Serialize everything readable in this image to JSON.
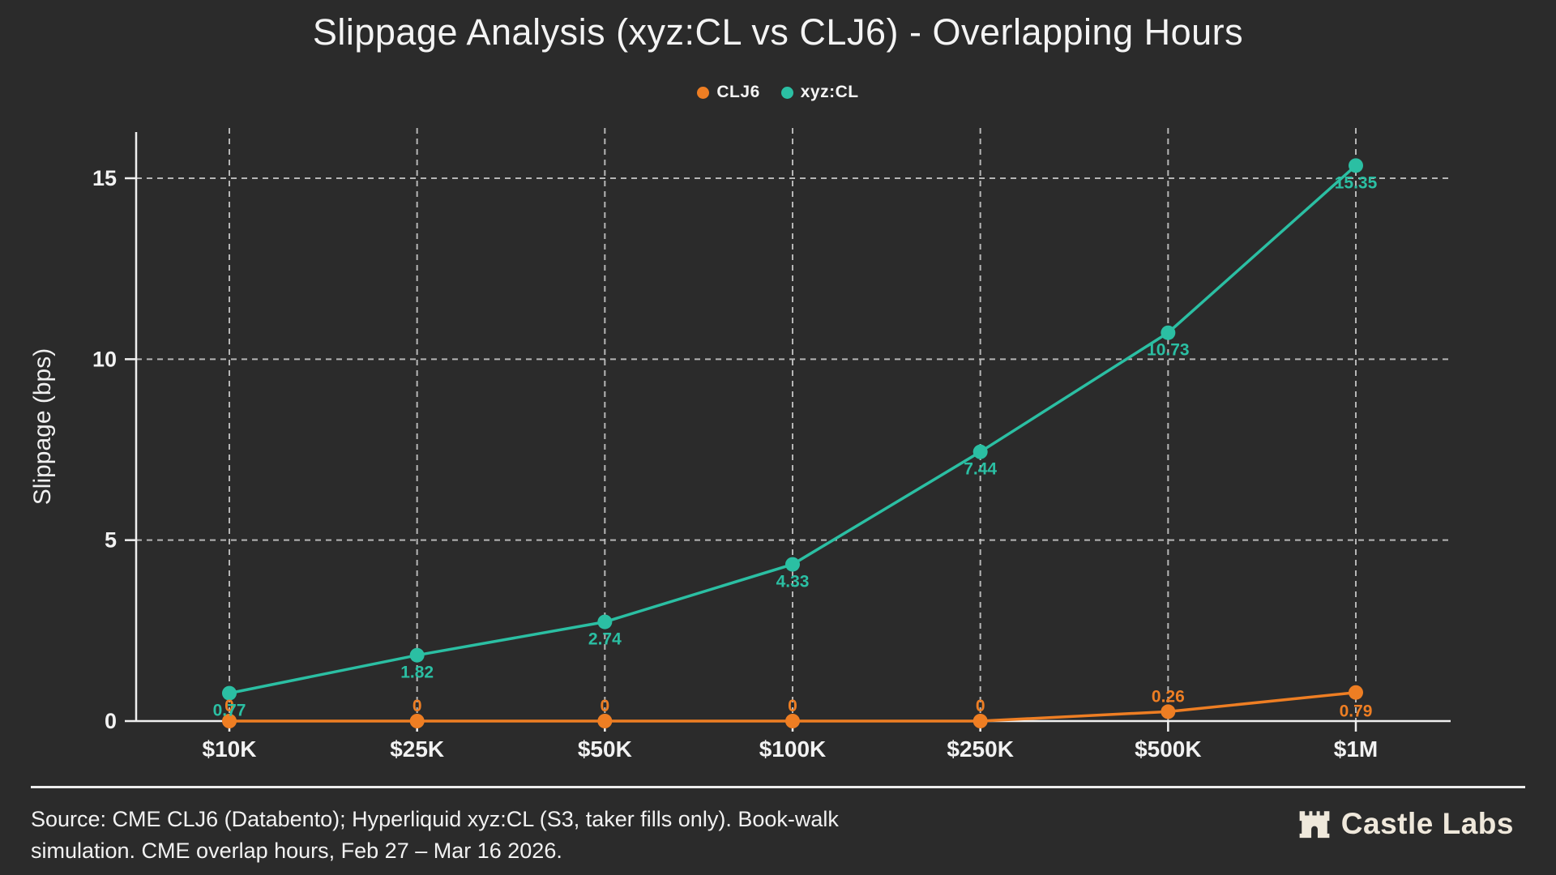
{
  "title": "Slippage Analysis (xyz:CL vs CLJ6) - Overlapping Hours",
  "chart_data": {
    "type": "line",
    "categories": [
      "$10K",
      "$25K",
      "$50K",
      "$100K",
      "$250K",
      "$500K",
      "$1M"
    ],
    "series": [
      {
        "name": "CLJ6",
        "color": "#ee7e23",
        "values": [
          0,
          0,
          0,
          0,
          0,
          0.26,
          0.79
        ],
        "point_labels": [
          "0",
          "0",
          "0",
          "0",
          "0",
          "0.26",
          "0.79"
        ]
      },
      {
        "name": "xyz:CL",
        "color": "#2bbfa3",
        "values": [
          0.77,
          1.82,
          2.74,
          4.33,
          7.44,
          10.73,
          15.35
        ],
        "point_labels": [
          "0.77",
          "1.82",
          "2.74",
          "4.33",
          "7.44",
          "10.73",
          "15.35"
        ]
      }
    ],
    "xlabel": "",
    "ylabel": "Slippage (bps)",
    "ylim": [
      0,
      15
    ],
    "yticks": [
      0,
      5,
      10,
      15
    ],
    "grid": true,
    "legend_position": "top"
  },
  "footer": {
    "source_lines": [
      "Source: CME CLJ6 (Databento); Hyperliquid xyz:CL (S3, taker fills only). Book-walk",
      "simulation. CME overlap hours, Feb 27 – Mar 16 2026."
    ],
    "brand": "Castle Labs"
  },
  "colors": {
    "background": "#2b2b2b",
    "text": "#f2f2f2",
    "accent_orange": "#ee7e23",
    "accent_teal": "#2bbfa3",
    "brand_cream": "#efe8db"
  }
}
